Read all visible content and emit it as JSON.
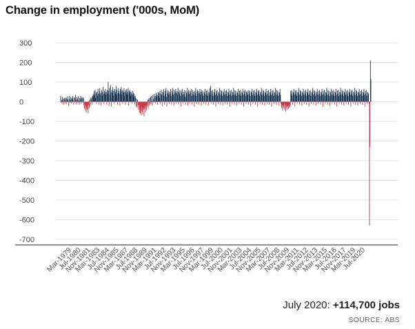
{
  "chart_data": {
    "type": "bar",
    "title": "Change in employment ('000s, MoM)",
    "xlabel": "",
    "ylabel": "",
    "ylim": [
      -700,
      300
    ],
    "yticks": [
      300,
      200,
      100,
      0,
      -100,
      -200,
      -300,
      -400,
      -500,
      -600,
      -700
    ],
    "grid": true,
    "legend": "none",
    "colors": {
      "positive": "#1b3552",
      "negative": "#c0394b"
    },
    "x_start": "Mar-1979",
    "x_end": "Jul-2020",
    "x_tick_labels": [
      "Mar-1979",
      "Jul-1980",
      "Nov-1981",
      "Mar-1983",
      "Jul-1984",
      "Nov-1985",
      "Mar-1987",
      "Jul-1988",
      "Nov-1989",
      "Mar-1991",
      "Jul-1992",
      "Nov-1993",
      "Mar-1995",
      "Jul-1996",
      "Nov-1997",
      "Mar-1999",
      "Jul-2000",
      "Nov-2001",
      "Mar-2003",
      "Jul-2004",
      "Nov-2005",
      "Mar-2007",
      "Jul-2008",
      "Nov-2009",
      "Mar-2011",
      "Jul-2012",
      "Nov-2013",
      "Mar-2015",
      "Jul-2016",
      "Nov-2017",
      "Mar-2019",
      "Jul-2020"
    ],
    "series": [
      {
        "values": [
          30,
          -5,
          10,
          -10,
          25,
          5,
          15,
          -15,
          20,
          10,
          -8,
          18,
          22,
          -12,
          12,
          28,
          5,
          -20,
          15,
          30,
          -5,
          10,
          25,
          -10,
          18,
          12,
          30,
          -15,
          8,
          22,
          -5,
          20,
          35,
          -12,
          10,
          25,
          15,
          -8,
          28,
          5,
          -15,
          20,
          12,
          30,
          -10,
          18,
          25,
          -5,
          15,
          22,
          -20,
          -35,
          -15,
          -45,
          -25,
          -55,
          -30,
          -40,
          -20,
          -60,
          -15,
          -35,
          10,
          -25,
          20,
          -10,
          15,
          25,
          -15,
          30,
          40,
          25,
          55,
          35,
          60,
          20,
          45,
          -10,
          50,
          30,
          65,
          40,
          -15,
          55,
          70,
          35,
          45,
          -20,
          60,
          30,
          50,
          75,
          40,
          -10,
          55,
          45,
          65,
          35,
          50,
          -15,
          60,
          40,
          100,
          55,
          -20,
          70,
          35,
          85,
          50,
          -25,
          60,
          45,
          75,
          30,
          55,
          -10,
          65,
          40,
          50,
          80,
          35,
          60,
          -15,
          45,
          70,
          55,
          40,
          -20,
          65,
          50,
          75,
          35,
          60,
          -10,
          55,
          45,
          70,
          30,
          50,
          -15,
          60,
          40,
          65,
          50,
          35,
          70,
          -20,
          55,
          45,
          60,
          30,
          50,
          40,
          -10,
          55,
          35,
          45,
          25,
          40,
          -15,
          30,
          20,
          -25,
          15,
          -30,
          10,
          -20,
          -40,
          -15,
          -55,
          -35,
          -60,
          -45,
          -70,
          -25,
          -50,
          -65,
          -30,
          -40,
          -75,
          -35,
          -20,
          -55,
          -30,
          -45,
          -15,
          -25,
          10,
          -35,
          15,
          -20,
          20,
          -10,
          25,
          -15,
          30,
          5,
          -20,
          35,
          15,
          -5,
          40,
          20,
          30,
          -10,
          45,
          25,
          35,
          -15,
          50,
          30,
          45,
          20,
          55,
          -10,
          40,
          60,
          35,
          -20,
          50,
          45,
          65,
          30,
          -15,
          55,
          40,
          70,
          25,
          -25,
          60,
          45,
          35,
          55,
          -10,
          50,
          40,
          65,
          30,
          -15,
          55,
          45,
          70,
          35,
          -20,
          60,
          40,
          50,
          65,
          -10,
          45,
          55,
          35,
          70,
          -15,
          50,
          40,
          60,
          30,
          -25,
          55,
          45,
          65,
          35,
          -10,
          50,
          40,
          60,
          25,
          -15,
          55,
          45,
          35,
          70,
          -20,
          50,
          60,
          40,
          -10,
          55,
          45,
          65,
          30,
          -15,
          60,
          40,
          50,
          35,
          -25,
          55,
          45,
          70,
          30,
          -10,
          50,
          60,
          40,
          55,
          -15,
          45,
          65,
          35,
          50,
          -20,
          60,
          40,
          55,
          30,
          -10,
          50,
          45,
          65,
          35,
          -15,
          55,
          40,
          60,
          30,
          -20,
          50,
          45,
          70,
          35,
          80,
          -10,
          55,
          40,
          60,
          30,
          -15,
          50,
          45,
          65,
          35,
          -25,
          55,
          40,
          60,
          30,
          -10,
          50,
          45,
          70,
          35,
          -15,
          60,
          40,
          55,
          30,
          -20,
          50,
          45,
          65,
          35,
          -10,
          55,
          40,
          60,
          30,
          -15,
          50,
          45,
          65,
          35,
          -25,
          55,
          40,
          60,
          30,
          -10,
          50,
          45,
          70,
          35,
          -15,
          60,
          40,
          55,
          30,
          -20,
          50,
          45,
          65,
          35,
          -10,
          55,
          40,
          60,
          30,
          -15,
          50,
          45,
          65,
          35,
          -25,
          55,
          40,
          60,
          30,
          -10,
          50,
          45,
          55,
          35,
          -15,
          60,
          40,
          55,
          30,
          -20,
          50,
          45,
          65,
          35,
          -10,
          55,
          40,
          60,
          30,
          -15,
          50,
          45,
          65,
          35,
          -25,
          55,
          40,
          60,
          30,
          -10,
          50,
          45,
          70,
          35,
          -15,
          60,
          40,
          55,
          30,
          -20,
          50,
          45,
          65,
          35,
          -10,
          55,
          40,
          60,
          30,
          -15,
          50,
          45,
          65,
          35,
          -25,
          55,
          40,
          60,
          30,
          -10,
          50,
          45,
          70,
          35,
          -15,
          60,
          40,
          55,
          30,
          -20,
          50,
          45,
          65,
          35,
          -10,
          -30,
          -20,
          -45,
          -15,
          -25,
          -35,
          -10,
          -40,
          -20,
          -50,
          -15,
          -30,
          -25,
          -40,
          -20,
          -35,
          -15,
          -30,
          -25,
          -20,
          55,
          40,
          60,
          30,
          -15,
          50,
          45,
          65,
          35,
          -25,
          55,
          40,
          60,
          30,
          -10,
          50,
          45,
          70,
          35,
          -15,
          60,
          40,
          55,
          30,
          -20,
          50,
          45,
          65,
          35,
          -10,
          55,
          40,
          60,
          30,
          -15,
          50,
          45,
          65,
          35,
          -25,
          55,
          40,
          60,
          30,
          -10,
          50,
          45,
          70,
          35,
          -15,
          60,
          40,
          55,
          30,
          -20,
          50,
          45,
          65,
          35,
          -10,
          55,
          40,
          60,
          30,
          -15,
          50,
          45,
          65,
          35,
          -25,
          55,
          40,
          60,
          30,
          -10,
          50,
          45,
          70,
          35,
          -15,
          60,
          40,
          55,
          30,
          -20,
          50,
          45,
          65,
          35,
          -10,
          55,
          40,
          60,
          30,
          -15,
          50,
          45,
          65,
          35,
          -25,
          55,
          40,
          60,
          30,
          -10,
          50,
          45,
          70,
          35,
          -15,
          60,
          40,
          55,
          30,
          -20,
          50,
          45,
          65,
          35,
          -10,
          55,
          40,
          60,
          30,
          -15,
          50,
          45,
          65,
          35,
          -25,
          55,
          40,
          60,
          30,
          -10,
          50,
          45,
          70,
          35,
          -15,
          60,
          40,
          55,
          30,
          -20,
          50,
          45,
          65,
          35,
          -10,
          55,
          40,
          60,
          30,
          -15,
          50,
          45,
          65,
          35,
          -25,
          55,
          40,
          60,
          30,
          -10,
          50,
          45,
          40,
          -10,
          -630,
          -230,
          210,
          115
        ]
      }
    ]
  },
  "callout": {
    "prefix": "July 2020: ",
    "value": "+114,700 jobs"
  },
  "source": "SOURCE: ABS"
}
